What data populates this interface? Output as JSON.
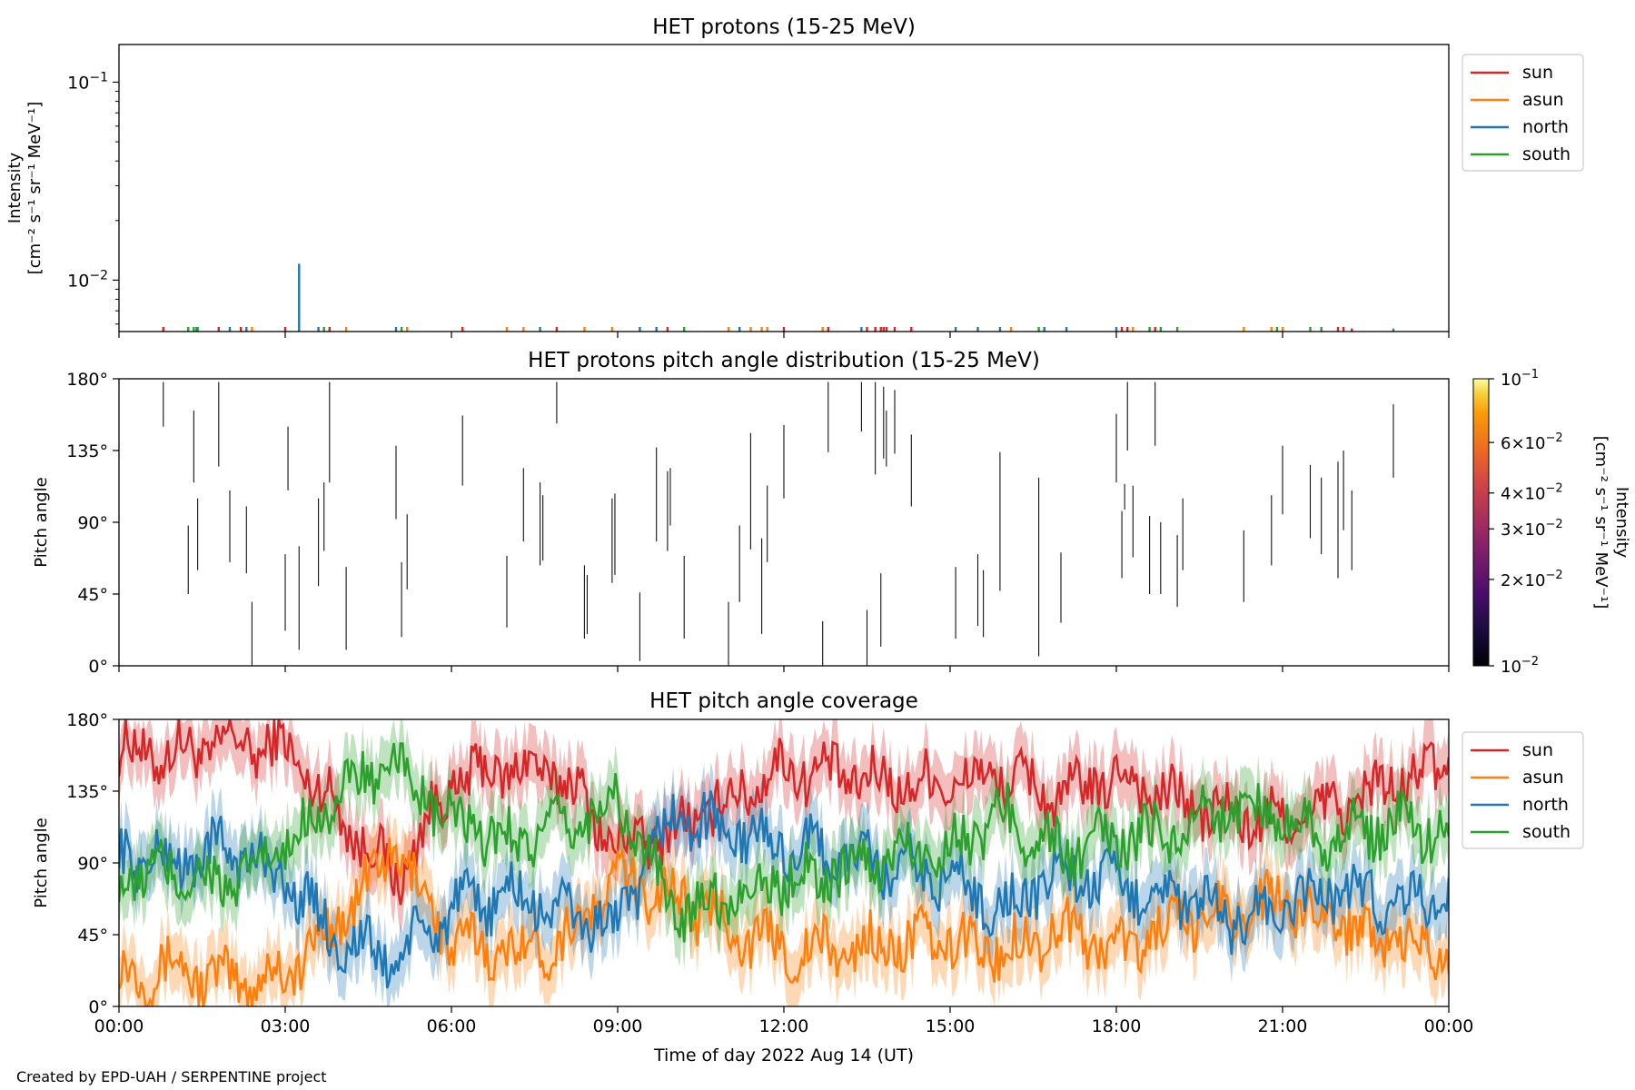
{
  "footer": {
    "credit": "Created by EPD-UAH / SERPENTINE project"
  },
  "chart_data": [
    {
      "type": "bar",
      "title": "HET protons (15-25 MeV)",
      "ylabel_line1": "Intensity",
      "ylabel_line2": "[cm⁻² s⁻¹ sr⁻¹ MeV⁻¹]",
      "yscale": "log",
      "ylim": [
        0.0055,
        0.155
      ],
      "xlim_hours": [
        0,
        24
      ],
      "grid": false,
      "legend": {
        "placement": "outside-right-top",
        "entries": [
          "sun",
          "asun",
          "north",
          "south"
        ]
      },
      "series": [
        {
          "name": "sun",
          "color": "#d62728",
          "x": [
            0.8,
            1.8,
            2.2,
            3.0,
            3.8,
            6.2,
            7.9,
            9.9,
            12.0,
            12.8,
            13.5,
            13.65,
            13.75,
            13.8,
            13.85,
            14.0,
            14.3,
            18.1,
            18.2,
            18.7,
            22.0,
            22.1,
            22.25
          ],
          "values": [
            0.0058,
            0.0058,
            0.0058,
            0.0058,
            0.0058,
            0.0058,
            0.0058,
            0.0058,
            0.0058,
            0.0058,
            0.0058,
            0.0058,
            0.0058,
            0.0058,
            0.0058,
            0.0058,
            0.0058,
            0.0058,
            0.0058,
            0.0058,
            0.0058,
            0.0058,
            0.0057
          ]
        },
        {
          "name": "asun",
          "color": "#ff7f0e",
          "x": [
            2.4,
            4.1,
            5.2,
            7.0,
            7.3,
            8.4,
            8.9,
            11.0,
            11.4,
            11.6,
            11.7,
            12.7,
            16.1,
            18.3,
            20.3,
            20.8,
            21.0
          ],
          "values": [
            0.0058,
            0.0058,
            0.0058,
            0.0058,
            0.0058,
            0.0058,
            0.0058,
            0.0058,
            0.0058,
            0.0058,
            0.0058,
            0.0058,
            0.0058,
            0.0058,
            0.0058,
            0.0058,
            0.0058
          ]
        },
        {
          "name": "north",
          "color": "#1f77b4",
          "x": [
            1.4,
            2.0,
            2.3,
            3.25,
            3.6,
            5.0,
            7.6,
            9.4,
            9.7,
            11.2,
            13.4,
            15.1,
            15.5,
            15.9,
            16.7,
            17.1,
            18.0
          ],
          "values": [
            0.0058,
            0.0058,
            0.0058,
            0.0121,
            0.0058,
            0.0058,
            0.0058,
            0.0058,
            0.0058,
            0.0058,
            0.0058,
            0.0058,
            0.0058,
            0.0058,
            0.0058,
            0.0058,
            0.0058
          ]
        },
        {
          "name": "south",
          "color": "#2ca02c",
          "x": [
            1.25,
            1.35,
            1.42,
            3.7,
            5.1,
            10.2,
            16.6,
            18.6,
            18.8,
            19.1,
            20.9,
            21.5,
            21.7,
            23.0
          ],
          "values": [
            0.0058,
            0.0058,
            0.0058,
            0.0058,
            0.0058,
            0.0058,
            0.0058,
            0.0058,
            0.0058,
            0.0058,
            0.0058,
            0.0058,
            0.0058,
            0.0057
          ]
        }
      ]
    },
    {
      "type": "scatter",
      "title": "HET protons pitch angle distribution (15-25 MeV)",
      "ylabel": "Pitch angle",
      "ylim": [
        0,
        180
      ],
      "yticks": [
        "0°",
        "45°",
        "90°",
        "135°",
        "180°"
      ],
      "xlim_hours": [
        0,
        24
      ],
      "colorbar": {
        "label_line1": "Intensity",
        "label_line2": "[cm⁻² s⁻¹ sr⁻¹ MeV⁻¹]",
        "scale": "log",
        "range": [
          0.01,
          0.1
        ],
        "ticks": [
          "10⁻²",
          "2×10⁻²",
          "3×10⁻²",
          "4×10⁻²",
          "6×10⁻²",
          "10⁻¹"
        ]
      },
      "segments": [
        {
          "x": 0.8,
          "y": [
            150,
            178
          ]
        },
        {
          "x": 1.25,
          "y": [
            45,
            88
          ]
        },
        {
          "x": 1.35,
          "y": [
            115,
            160
          ]
        },
        {
          "x": 1.42,
          "y": [
            60,
            105
          ]
        },
        {
          "x": 1.8,
          "y": [
            125,
            178
          ]
        },
        {
          "x": 2.0,
          "y": [
            65,
            110
          ]
        },
        {
          "x": 2.3,
          "y": [
            58,
            100
          ]
        },
        {
          "x": 2.4,
          "y": [
            0,
            40
          ]
        },
        {
          "x": 3.0,
          "y": [
            22,
            70
          ]
        },
        {
          "x": 3.05,
          "y": [
            110,
            150
          ]
        },
        {
          "x": 3.25,
          "y": [
            10,
            75
          ]
        },
        {
          "x": 3.6,
          "y": [
            50,
            105
          ]
        },
        {
          "x": 3.7,
          "y": [
            72,
            115
          ]
        },
        {
          "x": 3.8,
          "y": [
            115,
            178
          ]
        },
        {
          "x": 4.1,
          "y": [
            10,
            62
          ]
        },
        {
          "x": 5.0,
          "y": [
            92,
            138
          ]
        },
        {
          "x": 5.1,
          "y": [
            18,
            65
          ]
        },
        {
          "x": 5.2,
          "y": [
            48,
            95
          ]
        },
        {
          "x": 6.2,
          "y": [
            113,
            157
          ]
        },
        {
          "x": 7.0,
          "y": [
            24,
            69
          ]
        },
        {
          "x": 7.3,
          "y": [
            78,
            124
          ]
        },
        {
          "x": 7.6,
          "y": [
            63,
            115
          ]
        },
        {
          "x": 7.65,
          "y": [
            66,
            107
          ]
        },
        {
          "x": 7.9,
          "y": [
            152,
            178
          ]
        },
        {
          "x": 8.4,
          "y": [
            17,
            63
          ]
        },
        {
          "x": 8.45,
          "y": [
            20,
            57
          ]
        },
        {
          "x": 8.9,
          "y": [
            52,
            105
          ]
        },
        {
          "x": 8.95,
          "y": [
            57,
            108
          ]
        },
        {
          "x": 9.4,
          "y": [
            3,
            46
          ]
        },
        {
          "x": 9.7,
          "y": [
            78,
            137
          ]
        },
        {
          "x": 9.9,
          "y": [
            72,
            122
          ]
        },
        {
          "x": 9.95,
          "y": [
            88,
            124
          ]
        },
        {
          "x": 10.2,
          "y": [
            17,
            69
          ]
        },
        {
          "x": 11.0,
          "y": [
            0,
            40
          ]
        },
        {
          "x": 11.2,
          "y": [
            40,
            88
          ]
        },
        {
          "x": 11.4,
          "y": [
            73,
            146
          ]
        },
        {
          "x": 11.6,
          "y": [
            20,
            80
          ]
        },
        {
          "x": 11.7,
          "y": [
            65,
            113
          ]
        },
        {
          "x": 12.0,
          "y": [
            105,
            151
          ]
        },
        {
          "x": 12.7,
          "y": [
            0,
            28
          ]
        },
        {
          "x": 12.8,
          "y": [
            134,
            178
          ]
        },
        {
          "x": 13.4,
          "y": [
            147,
            178
          ]
        },
        {
          "x": 13.5,
          "y": [
            0,
            35
          ]
        },
        {
          "x": 13.65,
          "y": [
            120,
            178
          ]
        },
        {
          "x": 13.75,
          "y": [
            12,
            58
          ]
        },
        {
          "x": 13.8,
          "y": [
            130,
            175
          ]
        },
        {
          "x": 13.85,
          "y": [
            125,
            160
          ]
        },
        {
          "x": 14.0,
          "y": [
            133,
            173
          ]
        },
        {
          "x": 14.3,
          "y": [
            100,
            145
          ]
        },
        {
          "x": 15.1,
          "y": [
            17,
            62
          ]
        },
        {
          "x": 15.5,
          "y": [
            25,
            70
          ]
        },
        {
          "x": 15.6,
          "y": [
            18,
            60
          ]
        },
        {
          "x": 15.9,
          "y": [
            47,
            134
          ]
        },
        {
          "x": 16.6,
          "y": [
            6,
            118
          ]
        },
        {
          "x": 17.0,
          "y": [
            27,
            71
          ]
        },
        {
          "x": 18.0,
          "y": [
            115,
            158
          ]
        },
        {
          "x": 18.1,
          "y": [
            55,
            97
          ]
        },
        {
          "x": 18.15,
          "y": [
            98,
            114
          ]
        },
        {
          "x": 18.2,
          "y": [
            135,
            178
          ]
        },
        {
          "x": 18.3,
          "y": [
            68,
            113
          ]
        },
        {
          "x": 18.6,
          "y": [
            45,
            94
          ]
        },
        {
          "x": 18.7,
          "y": [
            138,
            178
          ]
        },
        {
          "x": 18.8,
          "y": [
            45,
            90
          ]
        },
        {
          "x": 19.1,
          "y": [
            37,
            82
          ]
        },
        {
          "x": 19.2,
          "y": [
            60,
            105
          ]
        },
        {
          "x": 20.3,
          "y": [
            40,
            85
          ]
        },
        {
          "x": 20.8,
          "y": [
            63,
            107
          ]
        },
        {
          "x": 21.0,
          "y": [
            95,
            138
          ]
        },
        {
          "x": 21.5,
          "y": [
            80,
            126
          ]
        },
        {
          "x": 21.7,
          "y": [
            70,
            118
          ]
        },
        {
          "x": 22.0,
          "y": [
            55,
            128
          ]
        },
        {
          "x": 22.1,
          "y": [
            85,
            135
          ]
        },
        {
          "x": 22.25,
          "y": [
            60,
            110
          ]
        },
        {
          "x": 23.0,
          "y": [
            118,
            164
          ]
        }
      ]
    },
    {
      "type": "line",
      "title": "HET pitch angle coverage",
      "ylabel": "Pitch angle",
      "xlabel": "Time of day 2022 Aug 14 (UT)",
      "xticks": [
        "00:00",
        "03:00",
        "06:00",
        "09:00",
        "12:00",
        "15:00",
        "18:00",
        "21:00",
        "00:00"
      ],
      "ylim": [
        0,
        180
      ],
      "yticks": [
        "0°",
        "45°",
        "90°",
        "135°",
        "180°"
      ],
      "xlim_hours": [
        0,
        24
      ],
      "grid": false,
      "legend": {
        "placement": "outside-right-top",
        "entries": [
          "sun",
          "asun",
          "north",
          "south"
        ]
      },
      "band_halfwidth_deg": 18,
      "series": [
        {
          "name": "sun",
          "color": "#d62728",
          "x": [
            0,
            1,
            2,
            3,
            4,
            5,
            6,
            7,
            8,
            9,
            10,
            11,
            12,
            13,
            14,
            15,
            16,
            17,
            18,
            19,
            20,
            21,
            22,
            23,
            24
          ],
          "values": [
            160,
            158,
            165,
            162,
            120,
            80,
            140,
            150,
            145,
            100,
            110,
            130,
            150,
            145,
            140,
            140,
            145,
            130,
            145,
            130,
            120,
            115,
            125,
            140,
            150
          ]
        },
        {
          "name": "asun",
          "color": "#ff7f0e",
          "x": [
            0,
            1,
            2,
            3,
            4,
            5,
            6,
            7,
            8,
            9,
            10,
            11,
            12,
            13,
            14,
            15,
            16,
            17,
            18,
            19,
            20,
            21,
            22,
            23,
            24
          ],
          "values": [
            20,
            25,
            15,
            20,
            55,
            100,
            40,
            35,
            40,
            80,
            70,
            50,
            35,
            35,
            40,
            40,
            35,
            50,
            35,
            50,
            60,
            65,
            55,
            40,
            30
          ]
        },
        {
          "name": "north",
          "color": "#1f77b4",
          "x": [
            0,
            1,
            2,
            3,
            4,
            5,
            6,
            7,
            8,
            9,
            10,
            11,
            12,
            13,
            14,
            15,
            16,
            17,
            18,
            19,
            20,
            21,
            22,
            23,
            24
          ],
          "values": [
            95,
            90,
            100,
            80,
            40,
            30,
            60,
            70,
            60,
            50,
            120,
            110,
            100,
            95,
            85,
            80,
            60,
            85,
            75,
            70,
            55,
            60,
            75,
            65,
            70
          ]
        },
        {
          "name": "south",
          "color": "#2ca02c",
          "x": [
            0,
            1,
            2,
            3,
            4,
            5,
            6,
            7,
            8,
            9,
            10,
            11,
            12,
            13,
            14,
            15,
            16,
            17,
            18,
            19,
            20,
            21,
            22,
            23,
            24
          ],
          "values": [
            80,
            85,
            75,
            100,
            135,
            150,
            115,
            105,
            110,
            130,
            60,
            70,
            80,
            85,
            95,
            100,
            120,
            95,
            105,
            110,
            125,
            120,
            105,
            115,
            110
          ]
        }
      ]
    }
  ]
}
